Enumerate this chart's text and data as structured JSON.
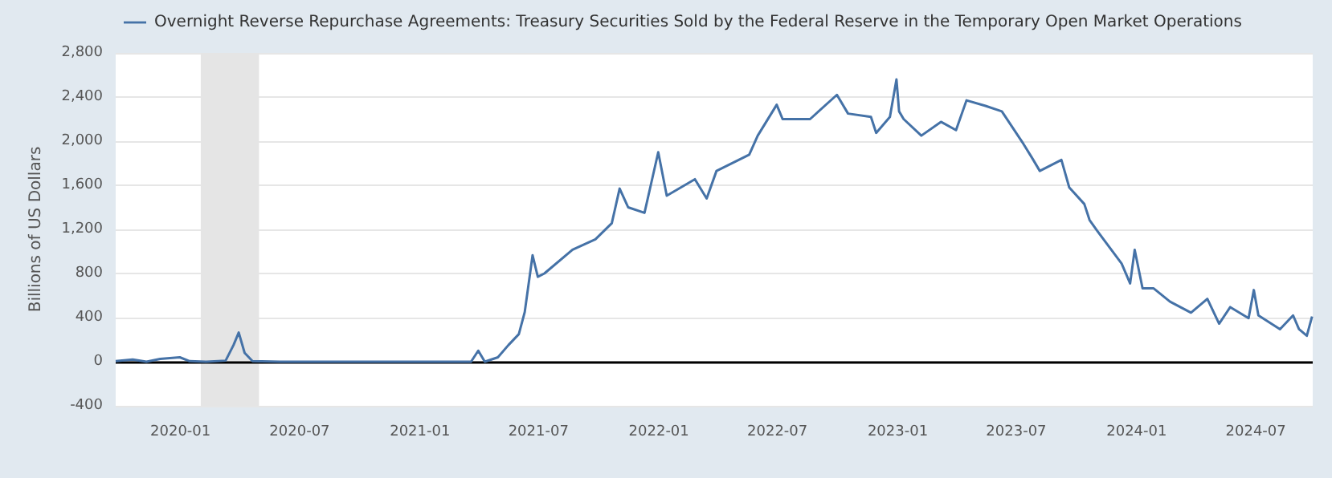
{
  "chart_data": {
    "type": "line",
    "ylabel": "Billions of US Dollars",
    "legend": "top left",
    "grid": "y",
    "xlim": [
      "2019-09-24",
      "2024-09-26"
    ],
    "ylim": [
      -400,
      2800
    ],
    "xticks": [
      "2020-01",
      "2020-07",
      "2021-01",
      "2021-07",
      "2022-01",
      "2022-07",
      "2023-01",
      "2023-07",
      "2024-01",
      "2024-07"
    ],
    "yticks": [
      {
        "value": -400,
        "label": "-400"
      },
      0,
      400,
      800,
      {
        "value": 1200,
        "label": "1,200"
      },
      {
        "value": 1600,
        "label": "1,600"
      },
      {
        "value": 2000,
        "label": "2,000"
      },
      {
        "value": 2400,
        "label": "2,400"
      },
      {
        "value": 2800,
        "label": "2,800"
      }
    ],
    "ref_lines": [
      {
        "axis": "y",
        "value": 0,
        "color": "#000000"
      }
    ],
    "bands": [
      {
        "axis": "x",
        "from": "2020-02-01",
        "to": "2020-04-30",
        "color": "#e5e5e5"
      }
    ],
    "series": [
      {
        "name": "Overnight Reverse Repurchase Agreements: Treasury Securities Sold by the Federal Reserve in the Temporary Open Market Operations",
        "color": "#4572a7",
        "x": [
          "2019-09-24",
          "2019-10-20",
          "2019-11-10",
          "2019-12-01",
          "2019-12-31",
          "2020-01-15",
          "2020-02-10",
          "2020-03-10",
          "2020-03-22",
          "2020-03-30",
          "2020-04-08",
          "2020-04-20",
          "2020-06-01",
          "2020-09-01",
          "2020-12-01",
          "2021-03-01",
          "2021-03-20",
          "2021-03-31",
          "2021-04-10",
          "2021-04-30",
          "2021-05-16",
          "2021-06-01",
          "2021-06-10",
          "2021-06-22",
          "2021-06-30",
          "2021-07-10",
          "2021-08-22",
          "2021-09-26",
          "2021-10-21",
          "2021-11-02",
          "2021-11-15",
          "2021-12-10",
          "2021-12-31",
          "2022-01-13",
          "2022-02-25",
          "2022-03-15",
          "2022-03-30",
          "2022-05-19",
          "2022-06-01",
          "2022-06-30",
          "2022-07-09",
          "2022-08-20",
          "2022-09-30",
          "2022-10-17",
          "2022-11-21",
          "2022-11-29",
          "2022-12-20",
          "2022-12-30",
          "2023-01-03",
          "2023-01-10",
          "2023-02-06",
          "2023-03-08",
          "2023-03-31",
          "2023-04-16",
          "2023-05-15",
          "2023-06-09",
          "2023-07-12",
          "2023-07-25",
          "2023-08-06",
          "2023-09-08",
          "2023-09-20",
          "2023-10-13",
          "2023-10-21",
          "2023-11-02",
          "2023-12-09",
          "2023-12-22",
          "2023-12-29",
          "2024-01-10",
          "2024-01-27",
          "2024-02-21",
          "2024-03-24",
          "2024-04-18",
          "2024-05-06",
          "2024-05-23",
          "2024-06-20",
          "2024-06-28",
          "2024-07-05",
          "2024-08-07",
          "2024-08-27",
          "2024-09-05",
          "2024-09-17",
          "2024-09-25"
        ],
        "values": [
          5,
          20,
          0,
          25,
          40,
          5,
          0,
          10,
          150,
          265,
          80,
          5,
          0,
          0,
          0,
          0,
          0,
          100,
          0,
          40,
          150,
          250,
          450,
          965,
          770,
          800,
          1015,
          1110,
          1255,
          1570,
          1400,
          1350,
          1900,
          1505,
          1655,
          1480,
          1730,
          1877,
          2050,
          2330,
          2200,
          2200,
          2420,
          2250,
          2220,
          2075,
          2220,
          2560,
          2270,
          2200,
          2050,
          2175,
          2100,
          2370,
          2320,
          2270,
          1975,
          1850,
          1730,
          1830,
          1580,
          1430,
          1285,
          1185,
          890,
          710,
          1015,
          665,
          665,
          545,
          445,
          570,
          345,
          495,
          395,
          650,
          420,
          295,
          420,
          295,
          235,
          410
        ]
      }
    ]
  }
}
